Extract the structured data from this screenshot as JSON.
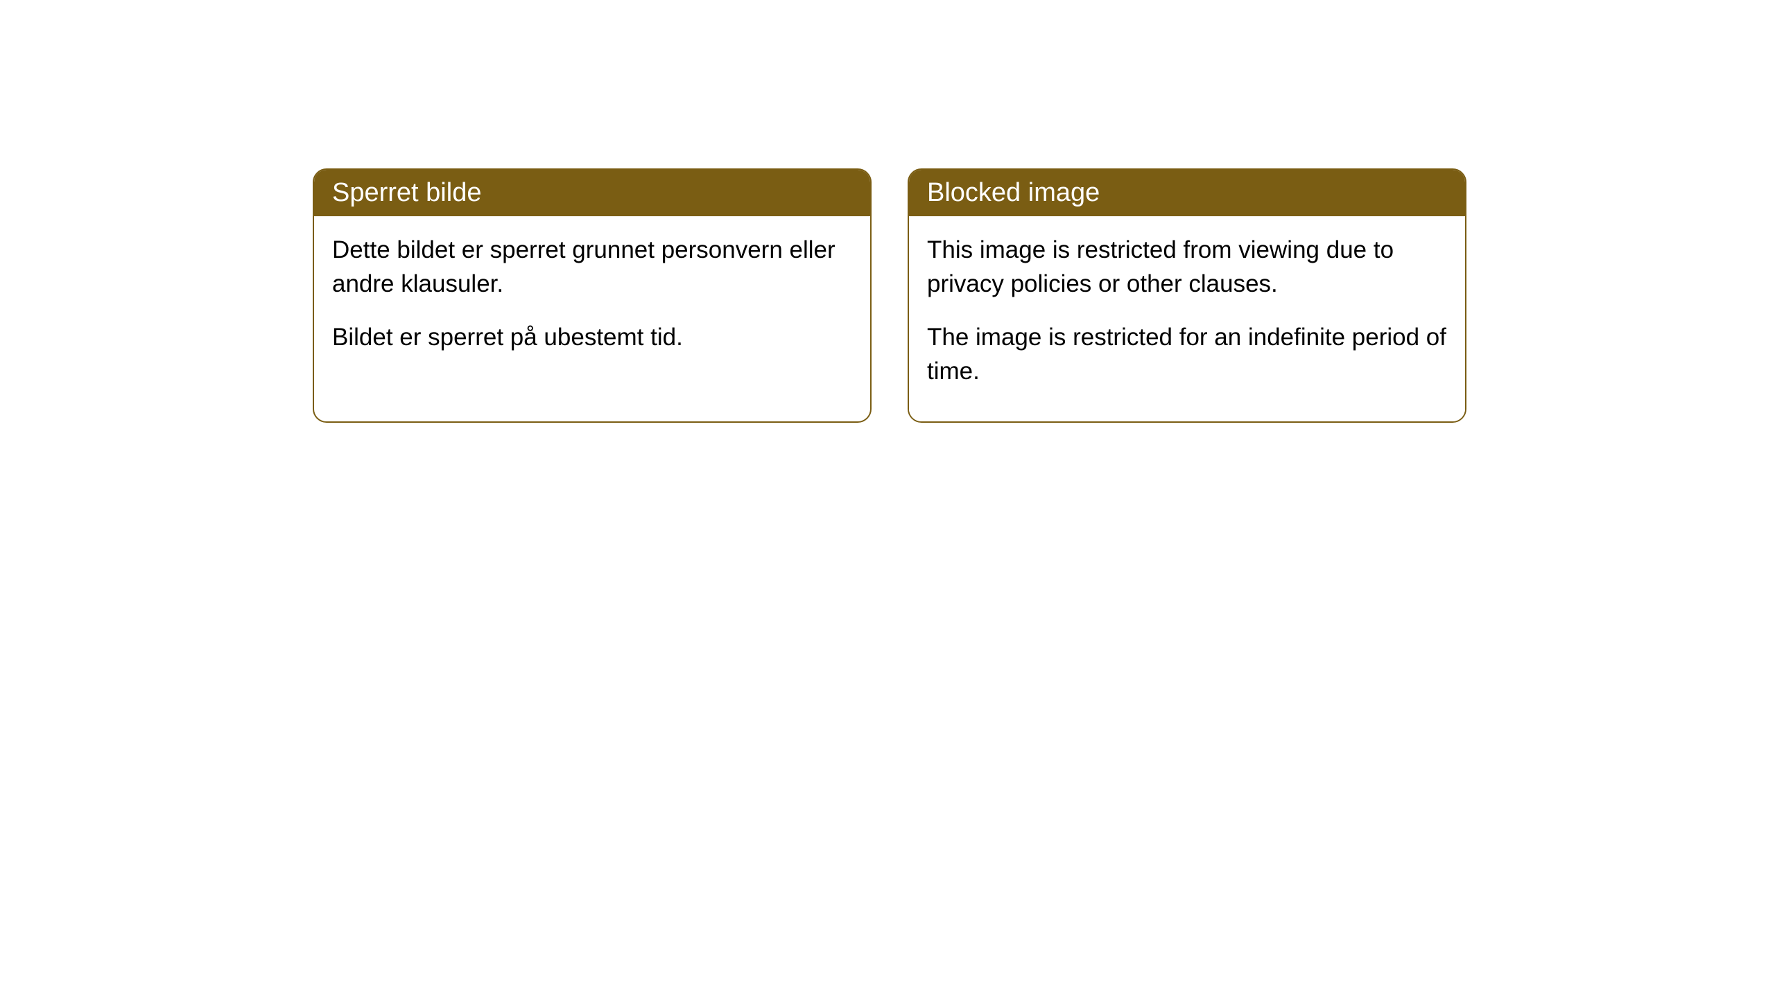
{
  "cards": [
    {
      "title": "Sperret bilde",
      "text1": "Dette bildet er sperret grunnet personvern eller andre klausuler.",
      "text2": "Bildet er sperret på ubestemt tid."
    },
    {
      "title": "Blocked image",
      "text1": "This image is restricted from viewing due to privacy policies or other clauses.",
      "text2": "The image is restricted for an indefinite period of time."
    }
  ],
  "style": {
    "header_bg_color": "#7a5d13",
    "header_text_color": "#ffffff",
    "card_border_color": "#7a5d13",
    "body_bg_color": "#ffffff",
    "body_text_color": "#000000",
    "page_bg_color": "#ffffff",
    "border_radius": 20,
    "header_fontsize": 38,
    "body_fontsize": 35
  }
}
